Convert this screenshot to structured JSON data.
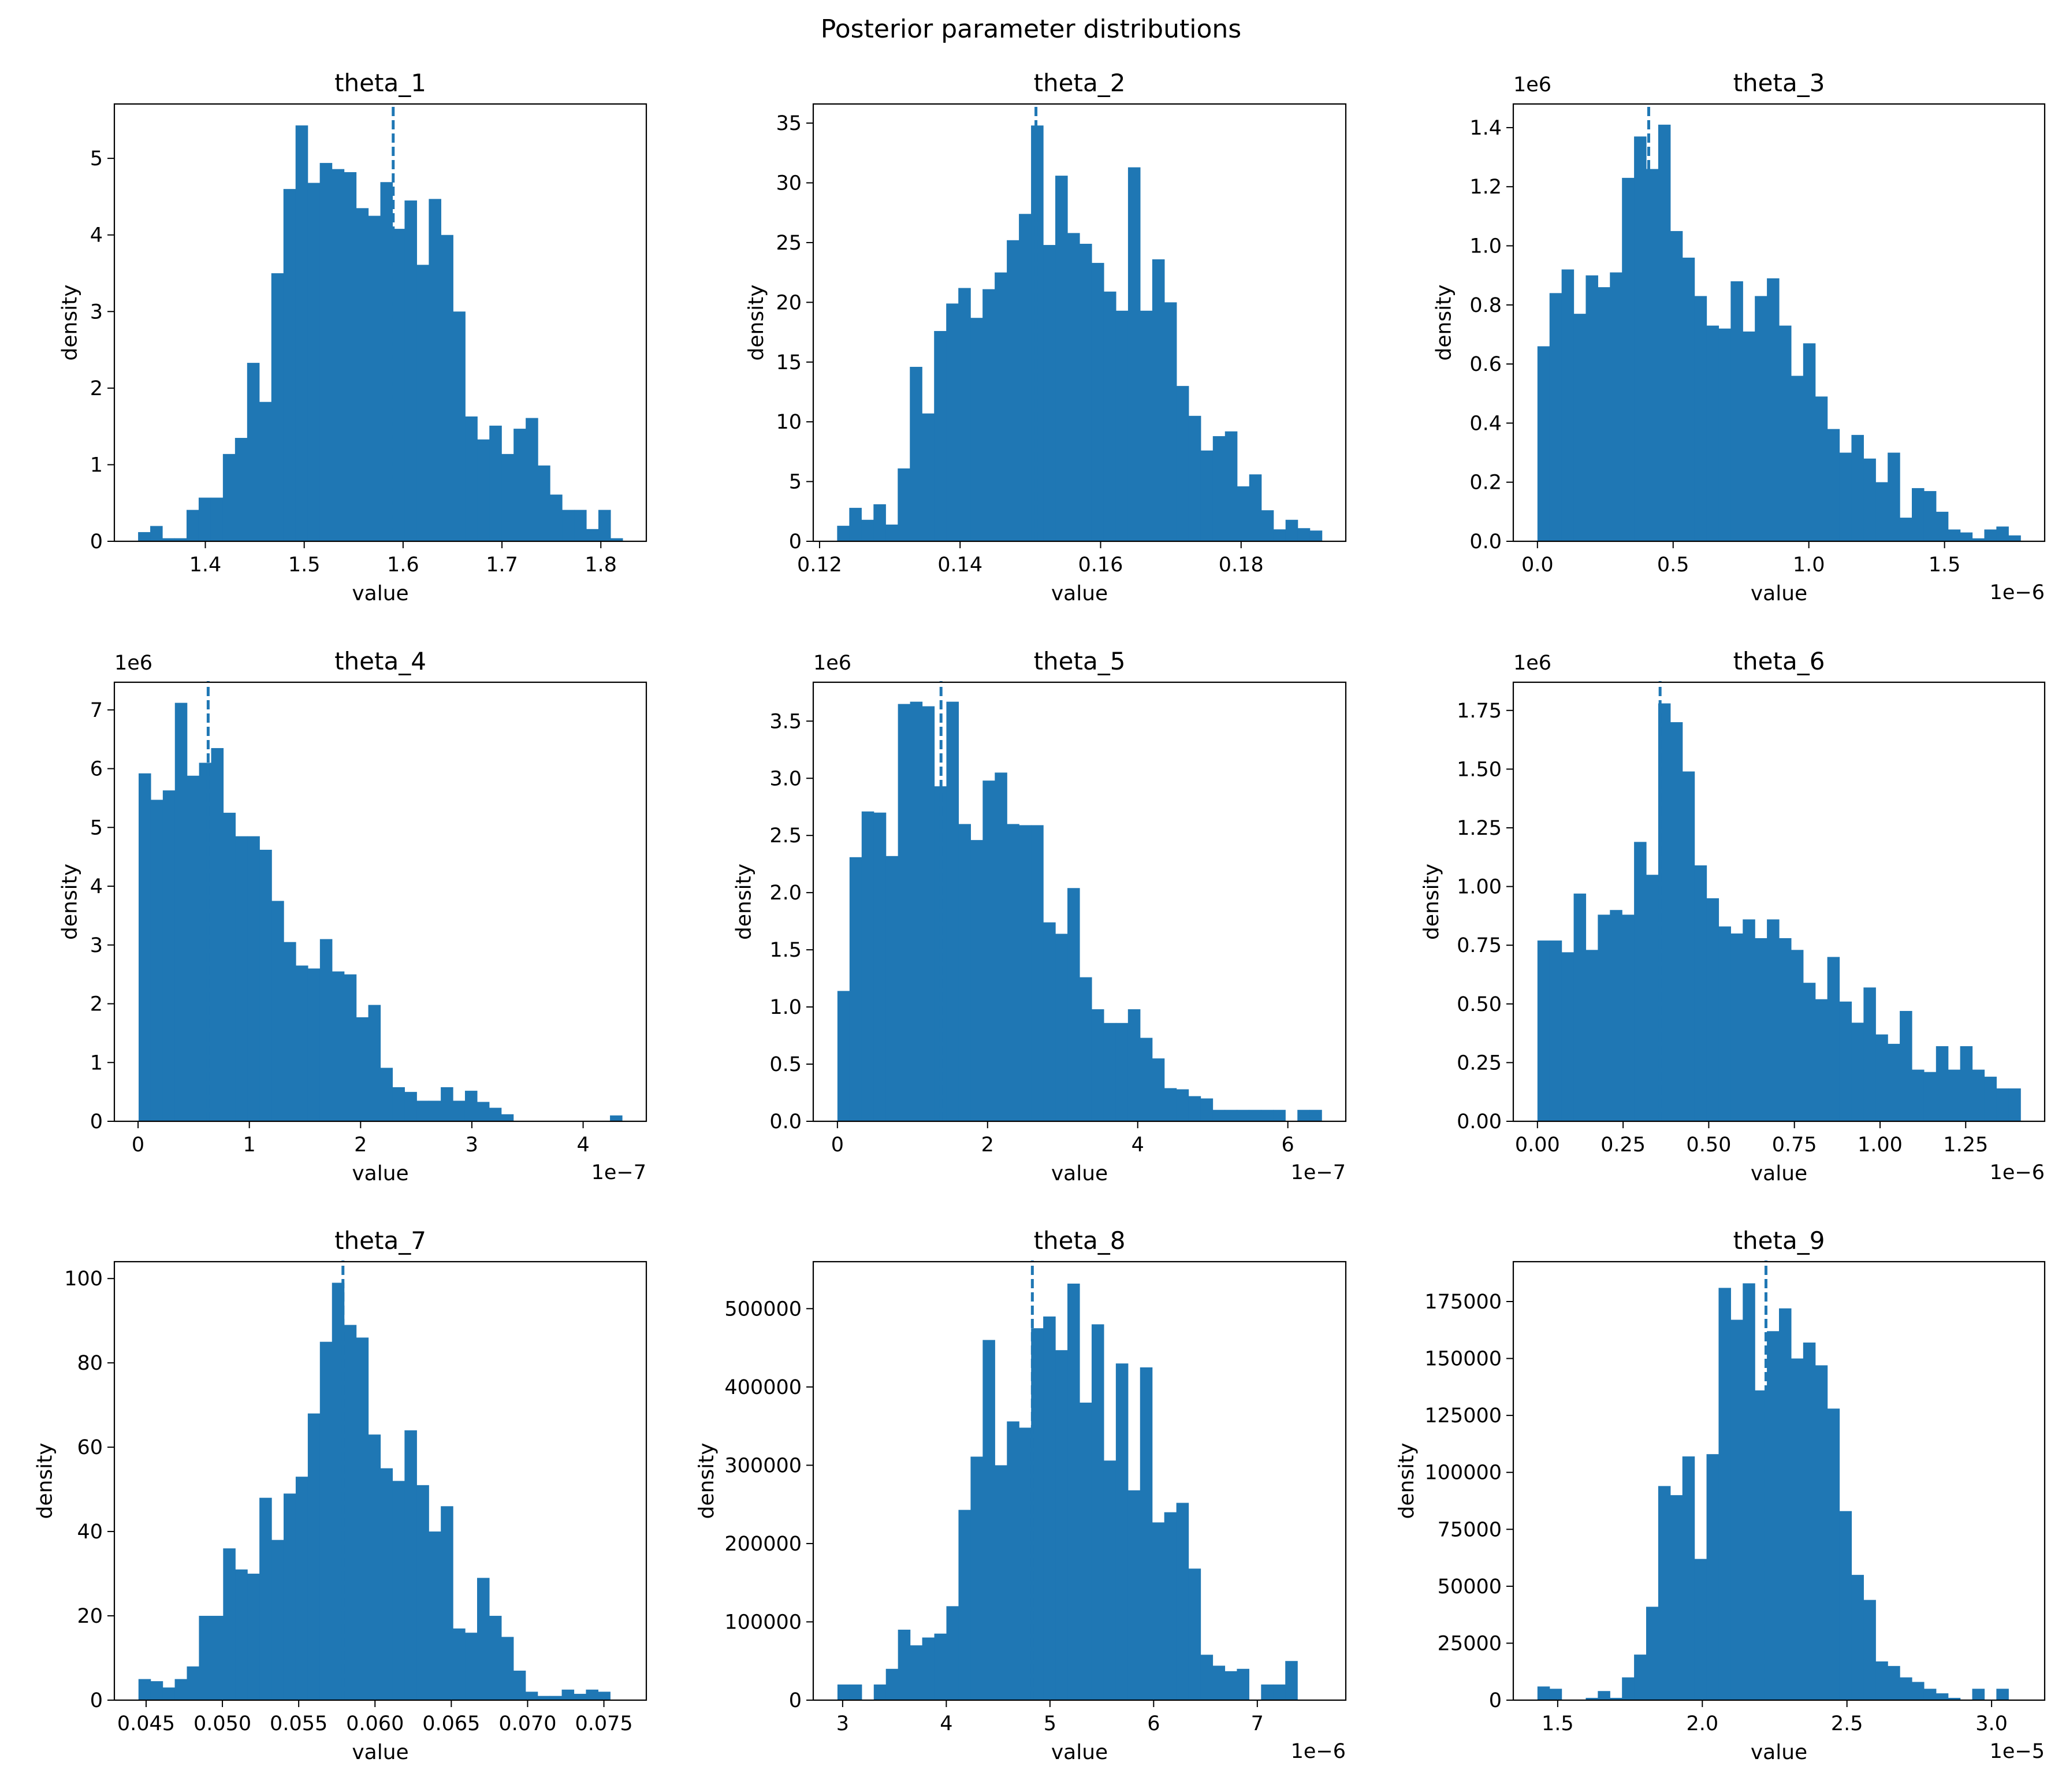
{
  "figure": {
    "title": "Posterior parameter distributions"
  },
  "colors": {
    "bar": "#1f77b4",
    "marker": "#1f77b4",
    "axis": "#000000"
  },
  "chart_data": [
    {
      "type": "bar",
      "title": "theta_1",
      "xlabel": "value",
      "ylabel": "density",
      "x_range": [
        1.332,
        1.822
      ],
      "xlim": [
        1.308,
        1.846
      ],
      "ylim": [
        0,
        5.71
      ],
      "offset": "",
      "xticks": [
        1.4,
        1.5,
        1.6,
        1.7,
        1.8
      ],
      "xtick_labels": [
        "1.4",
        "1.5",
        "1.6",
        "1.7",
        "1.8"
      ],
      "yticks": [
        0,
        1,
        2,
        3,
        4,
        5
      ],
      "ytick_labels": [
        "0",
        "1",
        "2",
        "3",
        "4",
        "5"
      ],
      "marker": 1.59,
      "values": [
        0.12,
        0.2,
        0.04,
        0.04,
        0.41,
        0.57,
        0.57,
        1.14,
        1.35,
        2.33,
        1.82,
        3.5,
        4.6,
        5.43,
        4.68,
        4.94,
        4.86,
        4.82,
        4.35,
        4.25,
        4.69,
        4.08,
        4.45,
        3.61,
        4.47,
        4.0,
        3.0,
        1.63,
        1.33,
        1.51,
        1.14,
        1.47,
        1.61,
        0.99,
        0.61,
        0.41,
        0.41,
        0.16,
        0.41,
        0.04
      ]
    },
    {
      "type": "bar",
      "title": "theta_2",
      "xlabel": "value",
      "ylabel": "density",
      "x_range": [
        0.1225,
        0.1915
      ],
      "xlim": [
        0.1191,
        0.1949
      ],
      "ylim": [
        0,
        36.6
      ],
      "offset": "",
      "xticks": [
        0.12,
        0.14,
        0.16,
        0.18
      ],
      "xtick_labels": [
        "0.12",
        "0.14",
        "0.16",
        "0.18"
      ],
      "yticks": [
        0,
        5,
        10,
        15,
        20,
        25,
        30,
        35
      ],
      "ytick_labels": [
        "0",
        "5",
        "10",
        "15",
        "20",
        "25",
        "30",
        "35"
      ],
      "marker": 0.1508,
      "values": [
        1.3,
        2.8,
        1.8,
        3.1,
        1.4,
        6.1,
        14.6,
        10.7,
        17.6,
        19.9,
        21.2,
        18.7,
        21.1,
        22.5,
        25.2,
        27.4,
        34.8,
        24.8,
        30.6,
        25.8,
        24.9,
        23.3,
        20.9,
        19.3,
        31.3,
        19.3,
        23.6,
        20.0,
        13.0,
        10.5,
        7.6,
        8.8,
        9.2,
        4.6,
        5.6,
        2.6,
        1.0,
        1.8,
        1.1,
        0.9
      ]
    },
    {
      "type": "bar",
      "title": "theta_3",
      "xlabel": "value",
      "ylabel": "density",
      "x_range": [
        0,
        1.78
      ],
      "xlim": [
        -0.089,
        1.869
      ],
      "ylim": [
        0,
        1.48
      ],
      "offset": "1e6",
      "x_offset": "1e−6",
      "xticks": [
        0,
        0.5,
        1.0,
        1.5
      ],
      "xtick_labels": [
        "0.0",
        "0.5",
        "1.0",
        "1.5"
      ],
      "yticks": [
        0,
        0.2,
        0.4,
        0.6,
        0.8,
        1.0,
        1.2,
        1.4
      ],
      "ytick_labels": [
        "0.0",
        "0.2",
        "0.4",
        "0.6",
        "0.8",
        "1.0",
        "1.2",
        "1.4"
      ],
      "marker": 0.41,
      "values": [
        0.66,
        0.84,
        0.92,
        0.77,
        0.9,
        0.86,
        0.91,
        1.23,
        1.37,
        1.26,
        1.41,
        1.05,
        0.96,
        0.83,
        0.73,
        0.72,
        0.88,
        0.71,
        0.83,
        0.89,
        0.73,
        0.56,
        0.67,
        0.49,
        0.38,
        0.3,
        0.36,
        0.28,
        0.2,
        0.3,
        0.08,
        0.18,
        0.17,
        0.1,
        0.04,
        0.03,
        0.01,
        0.04,
        0.05,
        0.02
      ]
    },
    {
      "type": "bar",
      "title": "theta_4",
      "xlabel": "value",
      "ylabel": "density",
      "x_range": [
        0.005,
        4.35
      ],
      "xlim": [
        -0.213,
        4.568
      ],
      "ylim": [
        0,
        7.47
      ],
      "offset": "1e6",
      "x_offset": "1e−7",
      "xticks": [
        0,
        1,
        2,
        3,
        4
      ],
      "xtick_labels": [
        "0",
        "1",
        "2",
        "3",
        "4"
      ],
      "yticks": [
        0,
        1,
        2,
        3,
        4,
        5,
        6,
        7
      ],
      "ytick_labels": [
        "0",
        "1",
        "2",
        "3",
        "4",
        "5",
        "6",
        "7"
      ],
      "marker": 0.63,
      "values": [
        5.92,
        5.47,
        5.63,
        7.12,
        5.88,
        6.1,
        6.35,
        5.25,
        4.85,
        4.85,
        4.62,
        3.75,
        3.05,
        2.65,
        2.6,
        3.1,
        2.55,
        2.5,
        1.77,
        1.98,
        0.91,
        0.58,
        0.5,
        0.35,
        0.35,
        0.58,
        0.35,
        0.52,
        0.33,
        0.23,
        0.12,
        0,
        0,
        0,
        0,
        0,
        0,
        0,
        0,
        0.1
      ]
    },
    {
      "type": "bar",
      "title": "theta_5",
      "xlabel": "value",
      "ylabel": "density",
      "x_range": [
        0,
        6.45
      ],
      "xlim": [
        -0.322,
        6.772
      ],
      "ylim": [
        0,
        3.84
      ],
      "offset": "1e6",
      "x_offset": "1e−7",
      "xticks": [
        0,
        2,
        4,
        6
      ],
      "xtick_labels": [
        "0",
        "2",
        "4",
        "6"
      ],
      "yticks": [
        0,
        0.5,
        1.0,
        1.5,
        2.0,
        2.5,
        3.0,
        3.5
      ],
      "ytick_labels": [
        "0.0",
        "0.5",
        "1.0",
        "1.5",
        "2.0",
        "2.5",
        "3.0",
        "3.5"
      ],
      "marker": 1.38,
      "values": [
        1.14,
        2.31,
        2.71,
        2.7,
        2.32,
        3.65,
        3.67,
        3.63,
        2.93,
        3.67,
        2.6,
        2.46,
        2.98,
        3.05,
        2.6,
        2.59,
        2.59,
        1.74,
        1.64,
        2.04,
        1.26,
        0.98,
        0.86,
        0.86,
        0.98,
        0.73,
        0.55,
        0.29,
        0.28,
        0.22,
        0.2,
        0.1,
        0.1,
        0.1,
        0.1,
        0.1,
        0.1,
        0,
        0.1,
        0.1
      ]
    },
    {
      "type": "bar",
      "title": "theta_6",
      "xlabel": "value",
      "ylabel": "density",
      "x_range": [
        0,
        1.41
      ],
      "xlim": [
        -0.0705,
        1.4805
      ],
      "ylim": [
        0,
        1.87
      ],
      "offset": "1e6",
      "x_offset": "1e−6",
      "xticks": [
        0,
        0.25,
        0.5,
        0.75,
        1.0,
        1.25
      ],
      "xtick_labels": [
        "0.00",
        "0.25",
        "0.50",
        "0.75",
        "1.00",
        "1.25"
      ],
      "yticks": [
        0,
        0.25,
        0.5,
        0.75,
        1.0,
        1.25,
        1.5,
        1.75
      ],
      "ytick_labels": [
        "0.00",
        "0.25",
        "0.50",
        "0.75",
        "1.00",
        "1.25",
        "1.50",
        "1.75"
      ],
      "marker": 0.358,
      "values": [
        0.77,
        0.77,
        0.72,
        0.97,
        0.73,
        0.88,
        0.9,
        0.88,
        1.19,
        1.05,
        1.78,
        1.7,
        1.49,
        1.09,
        0.95,
        0.83,
        0.8,
        0.86,
        0.78,
        0.86,
        0.78,
        0.73,
        0.59,
        0.52,
        0.7,
        0.51,
        0.42,
        0.57,
        0.37,
        0.33,
        0.47,
        0.22,
        0.21,
        0.32,
        0.22,
        0.32,
        0.22,
        0.19,
        0.14,
        0.14
      ]
    },
    {
      "type": "bar",
      "title": "theta_7",
      "xlabel": "value",
      "ylabel": "density",
      "x_range": [
        0.0445,
        0.0762
      ],
      "xlim": [
        0.04292,
        0.07778
      ],
      "ylim": [
        0,
        104
      ],
      "offset": "",
      "xticks": [
        0.045,
        0.05,
        0.055,
        0.06,
        0.065,
        0.07,
        0.075
      ],
      "xtick_labels": [
        "0.045",
        "0.050",
        "0.055",
        "0.060",
        "0.065",
        "0.070",
        "0.075"
      ],
      "yticks": [
        0,
        20,
        40,
        60,
        80,
        100
      ],
      "ytick_labels": [
        "0",
        "20",
        "40",
        "60",
        "80",
        "100"
      ],
      "marker": 0.0579,
      "values": [
        5,
        4.5,
        3,
        5,
        8,
        20,
        20,
        36,
        31,
        30,
        48,
        38,
        49,
        53,
        68,
        85,
        99,
        89,
        86,
        63,
        55,
        52,
        64,
        51,
        40,
        46,
        17,
        16,
        29,
        20,
        15,
        7,
        2,
        1,
        1,
        2.5,
        1.5,
        2.5,
        2,
        0
      ]
    },
    {
      "type": "bar",
      "title": "theta_8",
      "xlabel": "value",
      "ylabel": "density",
      "x_range": [
        2.95,
        7.62
      ],
      "xlim": [
        2.7165,
        7.8535
      ],
      "ylim": [
        0,
        560000
      ],
      "offset": "",
      "x_offset": "1e−6",
      "xticks": [
        3,
        4,
        5,
        6,
        7
      ],
      "xtick_labels": [
        "3",
        "4",
        "5",
        "6",
        "7"
      ],
      "yticks": [
        0,
        100000,
        200000,
        300000,
        400000,
        500000
      ],
      "ytick_labels": [
        "0",
        "100000",
        "200000",
        "300000",
        "400000",
        "500000"
      ],
      "marker": 4.83,
      "values": [
        20000,
        20000,
        0,
        20000,
        40000,
        90000,
        70000,
        80000,
        85000,
        120000,
        243000,
        311000,
        460000,
        300000,
        356000,
        348000,
        475000,
        490000,
        447000,
        532000,
        380000,
        480000,
        306000,
        430000,
        268000,
        425000,
        227000,
        240000,
        252000,
        168000,
        58000,
        44000,
        37000,
        40000,
        0,
        20000,
        20000,
        50000,
        0,
        0
      ]
    },
    {
      "type": "bar",
      "title": "theta_9",
      "xlabel": "value",
      "ylabel": "density",
      "x_range": [
        1.43,
        3.1
      ],
      "xlim": [
        1.3465,
        3.1835
      ],
      "ylim": [
        0,
        192500
      ],
      "offset": "",
      "x_offset": "1e−5",
      "xticks": [
        1.5,
        2.0,
        2.5,
        3.0
      ],
      "xtick_labels": [
        "1.5",
        "2.0",
        "2.5",
        "3.0"
      ],
      "yticks": [
        0,
        25000,
        50000,
        75000,
        100000,
        125000,
        150000,
        175000
      ],
      "ytick_labels": [
        "0",
        "25000",
        "50000",
        "75000",
        "100000",
        "125000",
        "150000",
        "175000"
      ],
      "marker": 2.22,
      "values": [
        6000,
        5000,
        0,
        0,
        1000,
        4000,
        1000,
        10000,
        20000,
        41000,
        94000,
        90000,
        107000,
        62000,
        108000,
        181000,
        167000,
        183000,
        136000,
        162000,
        172000,
        150000,
        157000,
        147000,
        128000,
        83000,
        55000,
        44000,
        17000,
        15000,
        10000,
        8000,
        5000,
        3000,
        1000,
        0,
        5000,
        0,
        5000,
        0
      ]
    }
  ]
}
